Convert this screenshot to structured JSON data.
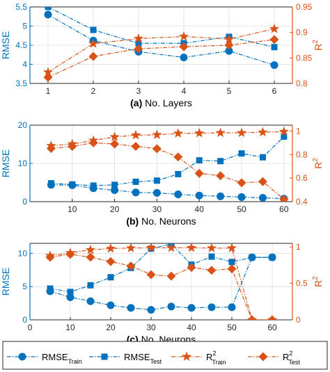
{
  "colors": {
    "left": "#0072BD",
    "right": "#D95319",
    "grid": "#dcdcdc",
    "axis": "#262626"
  },
  "legend": [
    {
      "label": "RMSE",
      "sub": "Train",
      "sup": "",
      "marker": "circle",
      "color": "#0072BD"
    },
    {
      "label": "RMSE",
      "sub": "Test",
      "sup": "",
      "marker": "square",
      "color": "#0072BD"
    },
    {
      "label": "R",
      "sub": "Train",
      "sup": "2",
      "marker": "star",
      "color": "#D95319"
    },
    {
      "label": "R",
      "sub": "Test",
      "sup": "2",
      "marker": "diamond",
      "color": "#D95319"
    }
  ],
  "chart_data": [
    {
      "type": "line",
      "panel_label": "(a)",
      "xlabel": "No. Layers",
      "ylabel_left": "RMSE",
      "ylabel_right": "R",
      "ylabel_right_sup": "2",
      "x": [
        1,
        2,
        3,
        4,
        5,
        6
      ],
      "xlim": [
        0.6,
        6.4
      ],
      "xticks": [
        "1",
        "2",
        "3",
        "4",
        "5",
        "6"
      ],
      "ylim_left": [
        3.5,
        5.5
      ],
      "yticks_left": [
        "3.5",
        "4",
        "4.5",
        "5",
        "5.5"
      ],
      "ylim_right": [
        0.8,
        0.95
      ],
      "yticks_right": [
        "0.8",
        "0.85",
        "0.9",
        "0.95"
      ],
      "grid": true,
      "series": [
        {
          "name": "RMSE Train",
          "axis": "left",
          "marker": "circle",
          "values": [
            5.3,
            4.62,
            4.33,
            4.18,
            4.35,
            3.98
          ]
        },
        {
          "name": "RMSE Test",
          "axis": "left",
          "marker": "square",
          "values": [
            5.5,
            4.9,
            4.55,
            4.55,
            4.72,
            4.45
          ]
        },
        {
          "name": "R2 Train",
          "axis": "right",
          "marker": "star",
          "values": [
            0.822,
            0.878,
            0.888,
            0.892,
            0.887,
            0.907
          ]
        },
        {
          "name": "R2 Test",
          "axis": "right",
          "marker": "diamond",
          "values": [
            0.812,
            0.853,
            0.868,
            0.872,
            0.875,
            0.886
          ]
        }
      ]
    },
    {
      "type": "line",
      "panel_label": "(b)",
      "xlabel": "No. Neurons",
      "ylabel_left": "RMSE",
      "ylabel_right": "R",
      "ylabel_right_sup": "2",
      "x": [
        5,
        10,
        15,
        20,
        25,
        30,
        35,
        40,
        45,
        50,
        55,
        60
      ],
      "xlim": [
        0,
        62
      ],
      "xticks": [
        "10",
        "20",
        "30",
        "40",
        "50",
        "60"
      ],
      "ylim_left": [
        0,
        20
      ],
      "yticks_left": [
        "0",
        "10",
        "20"
      ],
      "ylim_right": [
        0.4,
        1.05
      ],
      "yticks_right": [
        "0.4",
        "0.6",
        "0.8",
        "1"
      ],
      "grid": true,
      "series": [
        {
          "name": "RMSE Train",
          "axis": "left",
          "marker": "circle",
          "values": [
            4.4,
            4.3,
            3.5,
            3.0,
            2.4,
            2.3,
            1.9,
            1.6,
            1.4,
            1.2,
            1.0,
            0.8
          ]
        },
        {
          "name": "RMSE Test",
          "axis": "left",
          "marker": "square",
          "values": [
            4.8,
            4.5,
            4.2,
            4.4,
            5.2,
            5.5,
            7.2,
            10.8,
            10.6,
            12.6,
            11.6,
            17.0
          ]
        },
        {
          "name": "R2 Train",
          "axis": "right",
          "marker": "star",
          "values": [
            0.875,
            0.89,
            0.92,
            0.95,
            0.965,
            0.968,
            0.98,
            0.982,
            0.985,
            0.985,
            0.99,
            0.995
          ]
        },
        {
          "name": "R2 Test",
          "axis": "right",
          "marker": "diamond",
          "values": [
            0.852,
            0.87,
            0.9,
            0.89,
            0.87,
            0.85,
            0.78,
            0.64,
            0.62,
            0.56,
            0.57,
            0.42
          ]
        }
      ]
    },
    {
      "type": "line",
      "panel_label": "(c)",
      "xlabel": "No. Neurons",
      "ylabel_left": "RMSE",
      "ylabel_right": "R",
      "ylabel_right_sup": "2",
      "x": [
        5,
        10,
        15,
        20,
        25,
        30,
        35,
        40,
        45,
        50,
        55,
        60
      ],
      "xlim": [
        0,
        65
      ],
      "xticks": [
        "0",
        "10",
        "20",
        "30",
        "40",
        "50",
        "60"
      ],
      "ylim_left": [
        0,
        11.5
      ],
      "yticks_left": [
        "0",
        "5",
        "10"
      ],
      "ylim_right": [
        0,
        1.05
      ],
      "yticks_right": [
        "0",
        "0.5",
        "1"
      ],
      "grid": true,
      "series": [
        {
          "name": "RMSE Train",
          "axis": "left",
          "marker": "circle",
          "values": [
            4.3,
            3.4,
            2.8,
            2.2,
            1.8,
            1.5,
            2.0,
            1.8,
            1.9,
            1.9,
            9.4,
            9.4
          ]
        },
        {
          "name": "RMSE Test",
          "axis": "left",
          "marker": "square",
          "values": [
            4.7,
            4.2,
            5.2,
            6.4,
            7.8,
            10.7,
            11.4,
            8.3,
            9.5,
            8.7,
            9.4,
            9.4
          ]
        },
        {
          "name": "R2 Train",
          "axis": "right",
          "marker": "star",
          "values": [
            0.88,
            0.92,
            0.96,
            0.98,
            0.985,
            0.99,
            0.99,
            0.99,
            0.985,
            0.985,
            0,
            0
          ]
        },
        {
          "name": "R2 Test",
          "axis": "right",
          "marker": "diamond",
          "values": [
            0.86,
            0.9,
            0.86,
            0.8,
            0.74,
            0.62,
            0.6,
            0.72,
            0.68,
            0.7,
            0,
            0
          ]
        }
      ]
    }
  ]
}
